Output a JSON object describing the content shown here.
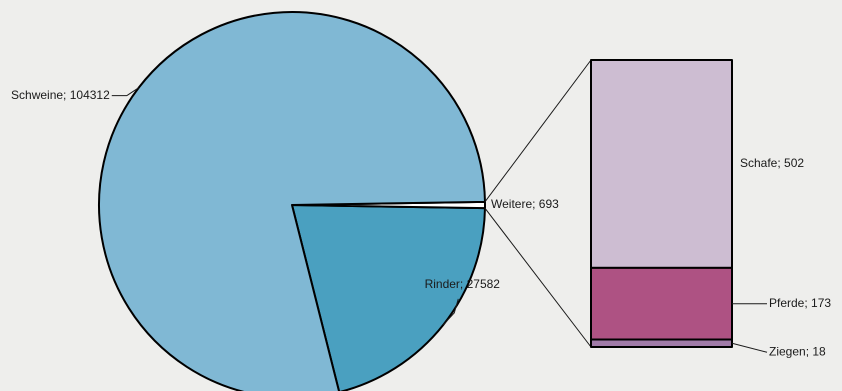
{
  "chart_data": {
    "type": "bar-of-pie",
    "title": "",
    "pie": {
      "slices": [
        {
          "name": "Rinder",
          "value": 27582,
          "label": "Rinder; 27582",
          "color": "#4aa0c0"
        },
        {
          "name": "Weitere",
          "value": 693,
          "label": "Weitere; 693",
          "color": "#ffffff"
        },
        {
          "name": "Schweine",
          "value": 104312,
          "label": "Schweine; 104312",
          "color": "#80b8d4"
        }
      ]
    },
    "breakdown_of": "Weitere",
    "bar": {
      "segments": [
        {
          "name": "Schafe",
          "value": 502,
          "label": "Schafe; 502",
          "color": "#cdbdd2"
        },
        {
          "name": "Pferde",
          "value": 173,
          "label": "Pferde; 173",
          "color": "#ae5283"
        },
        {
          "name": "Ziegen",
          "value": 18,
          "label": "Ziegen; 18",
          "color": "#a07ba8"
        }
      ]
    }
  }
}
